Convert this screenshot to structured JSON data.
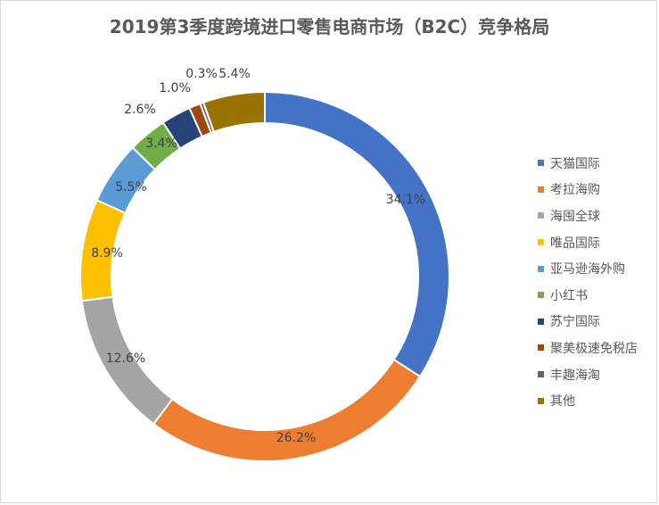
{
  "chart_data": {
    "type": "pie",
    "subtype": "donut",
    "title": "2019第3季度跨境进口零售电商市场（B2C）竞争格局",
    "categories": [
      "天猫国际",
      "考拉海购",
      "海囤全球",
      "唯品国际",
      "亚马逊海外购",
      "小红书",
      "苏宁国际",
      "聚美极速免税店",
      "丰趣海淘",
      "其他"
    ],
    "values": [
      34.1,
      26.2,
      12.6,
      8.9,
      5.5,
      3.4,
      2.6,
      1.0,
      0.3,
      5.4
    ],
    "labels": [
      "34.1%",
      "26.2%",
      "12.6%",
      "8.9%",
      "5.5%",
      "3.4%",
      "2.6%",
      "1.0%",
      "0.3%",
      "5.4%"
    ],
    "colors": [
      "#4472C4",
      "#ED7D31",
      "#A5A5A5",
      "#FFC000",
      "#5B9BD5",
      "#70AD47",
      "#264478",
      "#9E480E",
      "#636363",
      "#997300"
    ],
    "legend_position": "right",
    "unit": "%"
  }
}
